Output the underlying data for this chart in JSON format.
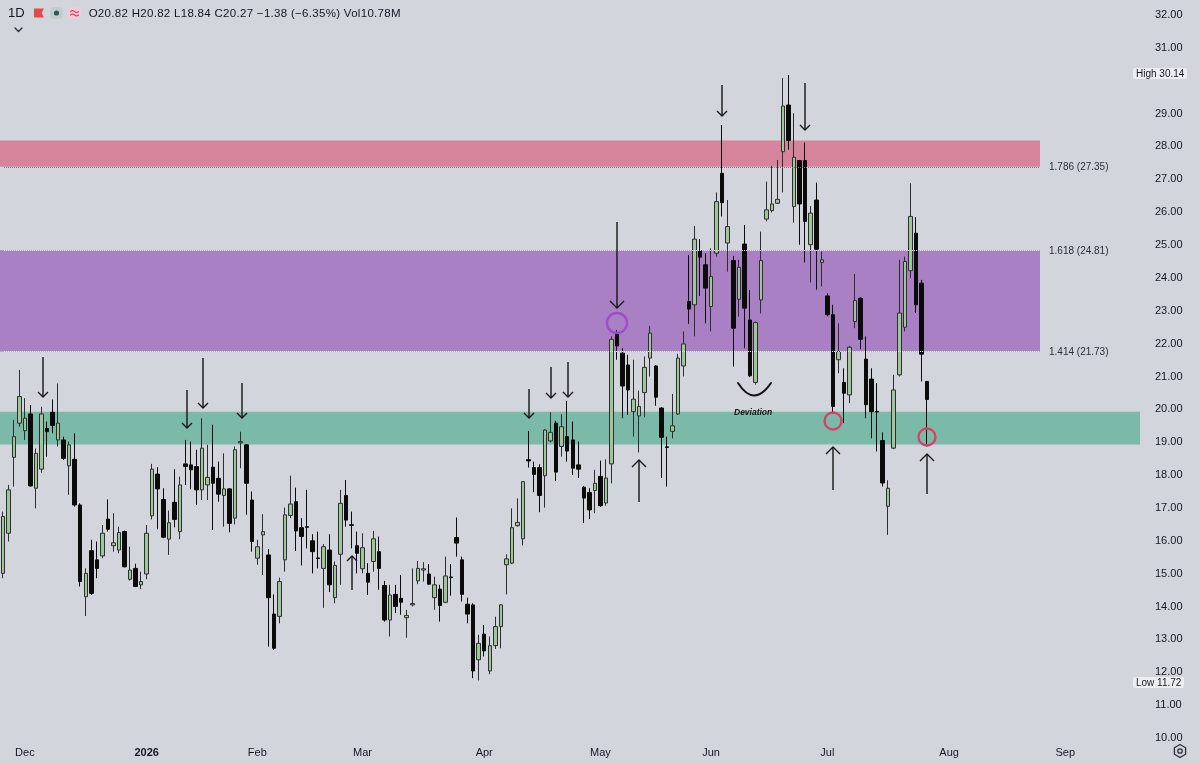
{
  "chart_data": {
    "type": "candlestick",
    "title": "1D",
    "subtitle": "O20.82 H20.82 L18.84 C20.27 −1.38 (−6.35%) Vol10.78M",
    "categories": [
      null,
      null,
      null,
      null,
      "Dec",
      null,
      null,
      null,
      null,
      null,
      null,
      null,
      null,
      null,
      null,
      null,
      null,
      null,
      null,
      null,
      null,
      null,
      null,
      null,
      null,
      null,
      "2026",
      null,
      null,
      null,
      null,
      null,
      null,
      null,
      null,
      null,
      null,
      null,
      null,
      null,
      null,
      null,
      null,
      null,
      null,
      null,
      "Feb",
      null,
      null,
      null,
      null,
      null,
      null,
      null,
      null,
      null,
      null,
      null,
      null,
      null,
      null,
      null,
      null,
      null,
      null,
      "Mar",
      null,
      null,
      null,
      null,
      null,
      null,
      null,
      null,
      null,
      null,
      null,
      null,
      null,
      null,
      null,
      null,
      null,
      null,
      null,
      null,
      null,
      "Apr",
      null,
      null,
      null,
      null,
      null,
      null,
      null,
      null,
      null,
      null,
      null,
      null,
      null,
      null,
      null,
      null,
      null,
      null,
      null,
      null,
      "May",
      null,
      null,
      null,
      null,
      null,
      null,
      null,
      null,
      null,
      null,
      null,
      null,
      null,
      null,
      null,
      null,
      null,
      null,
      null,
      "Jun",
      null,
      null,
      null,
      null,
      null,
      null,
      null,
      null,
      null,
      null,
      null,
      null,
      null,
      null,
      null,
      null,
      null,
      null,
      null,
      null,
      "Jul",
      null,
      null,
      null,
      null,
      null,
      null,
      null,
      null,
      null,
      null,
      null,
      null,
      null,
      null,
      null,
      null,
      null,
      null,
      null,
      null,
      null,
      "Aug",
      null,
      null,
      null,
      null,
      null,
      null,
      null,
      null,
      null,
      null,
      null,
      null,
      null,
      null,
      null,
      null,
      null,
      null,
      null,
      null,
      "Sep",
      null,
      null,
      null,
      null,
      null,
      null,
      null,
      null,
      null,
      null,
      null,
      null,
      null
    ],
    "ohlc": [
      [
        14.98,
        16.86,
        14.83,
        16.71
      ],
      [
        16.2,
        17.67,
        15.95,
        17.52
      ],
      [
        18.51,
        19.65,
        17.62,
        19.14
      ],
      [
        19.55,
        21.17,
        19.44,
        20.36
      ],
      [
        19.32,
        20.31,
        19.04,
        19.7
      ],
      [
        19.83,
        20.1,
        17.62,
        17.64
      ],
      [
        17.57,
        18.78,
        16.96,
        18.63
      ],
      [
        18.15,
        20.05,
        18.04,
        19.83
      ],
      [
        19.39,
        19.6,
        18.53,
        19.29
      ],
      [
        19.88,
        20.27,
        19.24,
        19.48
      ],
      [
        19.04,
        20.76,
        18.84,
        19.55
      ],
      [
        19.04,
        19.14,
        18.43,
        18.48
      ],
      [
        18.25,
        18.99,
        17.37,
        18.89
      ],
      [
        18.45,
        19.24,
        17.01,
        17.06
      ],
      [
        17.06,
        17.11,
        14.58,
        14.73
      ],
      [
        14.27,
        15.13,
        13.68,
        14.98
      ],
      [
        15.67,
        16.0,
        14.32,
        14.37
      ],
      [
        15.39,
        15.95,
        14.83,
        15.13
      ],
      [
        15.51,
        16.45,
        15.44,
        16.2
      ],
      [
        16.63,
        17.23,
        16.25,
        16.32
      ],
      [
        15.82,
        16.81,
        15.64,
        15.91
      ],
      [
        15.69,
        16.4,
        15.59,
        16.22
      ],
      [
        16.25,
        16.28,
        15.16,
        15.18
      ],
      [
        14.8,
        15.79,
        14.76,
        15.08
      ],
      [
        15.13,
        15.27,
        14.56,
        14.58
      ],
      [
        14.63,
        15.03,
        14.5,
        14.73
      ],
      [
        14.96,
        16.45,
        14.8,
        16.2
      ],
      [
        16.73,
        18.31,
        16.62,
        18.15
      ],
      [
        18.0,
        18.21,
        16.32,
        17.55
      ],
      [
        17.23,
        17.57,
        16.05,
        16.08
      ],
      [
        16.02,
        16.89,
        15.54,
        16.52
      ],
      [
        17.14,
        18.15,
        16.38,
        16.62
      ],
      [
        16.25,
        17.92,
        16.02,
        17.67
      ],
      [
        18.31,
        19.04,
        17.67,
        18.23
      ],
      [
        18.28,
        18.99,
        17.54,
        18.13
      ],
      [
        18.23,
        18.74,
        17.06,
        17.52
      ],
      [
        17.52,
        19.7,
        17.21,
        18.79
      ],
      [
        17.67,
        18.89,
        17.21,
        17.9
      ],
      [
        18.21,
        19.5,
        16.3,
        17.72
      ],
      [
        17.87,
        18.38,
        17.16,
        17.39
      ],
      [
        17.35,
        18.63,
        16.4,
        17.55
      ],
      [
        17.55,
        17.57,
        16.23,
        16.5
      ],
      [
        16.66,
        18.84,
        16.47,
        18.74
      ],
      [
        18.95,
        19.29,
        18.18,
        18.99
      ],
      [
        18.89,
        18.91,
        16.76,
        17.72
      ],
      [
        17.21,
        17.47,
        15.64,
        15.95
      ],
      [
        15.44,
        16.0,
        15.24,
        15.79
      ],
      [
        16.15,
        16.78,
        14.93,
        16.25
      ],
      [
        15.54,
        15.72,
        12.75,
        14.24
      ],
      [
        13.74,
        14.34,
        12.65,
        12.7
      ],
      [
        13.67,
        14.85,
        13.46,
        14.73
      ],
      [
        15.39,
        16.98,
        15.03,
        16.76
      ],
      [
        16.74,
        17.95,
        16.66,
        17.09
      ],
      [
        17.16,
        17.59,
        15.66,
        16.27
      ],
      [
        16.37,
        16.66,
        15.22,
        16.1
      ],
      [
        16.4,
        17.52,
        15.74,
        16.38
      ],
      [
        15.97,
        16.17,
        14.98,
        15.64
      ],
      [
        15.45,
        16.25,
        15.13,
        15.43
      ],
      [
        15.13,
        15.87,
        13.93,
        15.79
      ],
      [
        15.69,
        16.17,
        14.41,
        14.63
      ],
      [
        14.24,
        15.34,
        14.07,
        15.22
      ],
      [
        15.56,
        17.52,
        14.63,
        17.11
      ],
      [
        17.35,
        17.82,
        16.4,
        16.6
      ],
      [
        16.46,
        16.86,
        15.74,
        16.44
      ],
      [
        15.82,
        16.25,
        14.98,
        15.59
      ],
      [
        15.12,
        16.2,
        14.98,
        15.76
      ],
      [
        14.98,
        15.29,
        14.32,
        14.71
      ],
      [
        15.34,
        16.27,
        15.03,
        16.03
      ],
      [
        15.64,
        16.1,
        14.48,
        15.13
      ],
      [
        14.61,
        14.75,
        13.51,
        13.56
      ],
      [
        13.56,
        14.63,
        13.06,
        14.32
      ],
      [
        14.34,
        14.63,
        13.77,
        13.97
      ],
      [
        14.22,
        14.93,
        13.72,
        14.1
      ],
      [
        13.63,
        13.87,
        13.02,
        13.7
      ],
      [
        14.02,
        15.13,
        13.97,
        14.06
      ],
      [
        14.75,
        15.36,
        14.65,
        15.13
      ],
      [
        15.08,
        15.32,
        14.73,
        15.12
      ],
      [
        14.96,
        15.26,
        14.63,
        14.65
      ],
      [
        14.24,
        14.88,
        13.87,
        14.63
      ],
      [
        14.5,
        14.63,
        13.51,
        14.0
      ],
      [
        14.1,
        15.49,
        14.07,
        14.9
      ],
      [
        14.87,
        15.26,
        14.3,
        14.85
      ],
      [
        16.07,
        16.68,
        15.49,
        15.9
      ],
      [
        15.39,
        15.49,
        14.12,
        14.34
      ],
      [
        14.04,
        14.24,
        13.46,
        13.74
      ],
      [
        14.02,
        14.07,
        11.79,
        12.01
      ],
      [
        12.35,
        13.11,
        11.72,
        12.85
      ],
      [
        13.13,
        13.41,
        12.45,
        12.62
      ],
      [
        12.01,
        13.06,
        11.91,
        12.78
      ],
      [
        12.78,
        13.66,
        12.68,
        13.36
      ],
      [
        13.36,
        14.04,
        12.7,
        14.02
      ],
      [
        15.24,
        15.56,
        14.34,
        15.42
      ],
      [
        15.29,
        16.96,
        15.26,
        16.37
      ],
      [
        16.43,
        17.26,
        16.4,
        16.53
      ],
      [
        16.03,
        17.79,
        15.83,
        17.77
      ],
      [
        18.44,
        19.31,
        18.2,
        18.4
      ],
      [
        18.2,
        18.38,
        17.45,
        17.99
      ],
      [
        18.2,
        18.3,
        16.84,
        17.35
      ],
      [
        17.95,
        19.37,
        16.98,
        19.34
      ],
      [
        19.01,
        19.88,
        18.97,
        19.27
      ],
      [
        19.55,
        19.62,
        17.79,
        18.06
      ],
      [
        18.84,
        19.82,
        18.53,
        19.44
      ],
      [
        19.14,
        20.23,
        18.38,
        18.7
      ],
      [
        19.04,
        19.6,
        17.97,
        18.18
      ],
      [
        18.28,
        18.99,
        17.88,
        18.15
      ],
      [
        17.6,
        17.64,
        16.51,
        17.27
      ],
      [
        17.44,
        17.57,
        16.63,
        16.91
      ],
      [
        17.5,
        18.13,
        16.81,
        17.72
      ],
      [
        17.93,
        18.41,
        17.0,
        17.04
      ],
      [
        17.12,
        18.45,
        17.04,
        17.88
      ],
      [
        18.31,
        22.19,
        17.72,
        22.1
      ],
      [
        22.31,
        22.39,
        21.48,
        21.9
      ],
      [
        21.68,
        21.83,
        19.7,
        20.68
      ],
      [
        21.32,
        21.63,
        19.8,
        20.56
      ],
      [
        19.9,
        21.48,
        19.14,
        20.28
      ],
      [
        19.77,
        20.54,
        18.66,
        20.06
      ],
      [
        20.48,
        21.58,
        19.73,
        21.25
      ],
      [
        21.53,
        22.51,
        20.97,
        22.29
      ],
      [
        21.29,
        21.32,
        20.08,
        20.34
      ],
      [
        20.01,
        20.04,
        17.88,
        19.12
      ],
      [
        18.83,
        19.14,
        17.62,
        18.81
      ],
      [
        19.3,
        20.44,
        19.09,
        19.47
      ],
      [
        19.83,
        21.66,
        19.8,
        21.53
      ],
      [
        21.29,
        22.34,
        20.97,
        21.96
      ],
      [
        23.25,
        24.67,
        22.57,
        23.02
      ],
      [
        23.15,
        25.55,
        22.19,
        25.15
      ],
      [
        24.8,
        25.15,
        23.42,
        24.6
      ],
      [
        24.37,
        24.72,
        22.59,
        23.66
      ],
      [
        23.1,
        24.87,
        22.34,
        24.01
      ],
      [
        24.72,
        26.57,
        24.62,
        26.29
      ],
      [
        27.15,
        28.62,
        25.84,
        26.26
      ],
      [
        25.03,
        26.34,
        24.16,
        25.53
      ],
      [
        24.5,
        24.64,
        21.27,
        22.44
      ],
      [
        23.32,
        24.52,
        22.79,
        24.29
      ],
      [
        25.0,
        25.58,
        21.83,
        23.05
      ],
      [
        22.69,
        23.6,
        20.95,
        20.99
      ],
      [
        20.79,
        22.64,
        20.72,
        22.61
      ],
      [
        23.3,
        25.38,
        22.89,
        24.5
      ],
      [
        25.76,
        26.9,
        25.69,
        26.04
      ],
      [
        26.02,
        27.38,
        25.96,
        26.22
      ],
      [
        26.24,
        27.56,
        26.22,
        26.36
      ],
      [
        27.81,
        30.05,
        26.57,
        29.2
      ],
      [
        29.23,
        30.14,
        27.87,
        28.15
      ],
      [
        26.14,
        28.98,
        25.65,
        27.64
      ],
      [
        27.54,
        27.56,
        24.98,
        26.22
      ],
      [
        27.54,
        28.09,
        24.44,
        25.69
      ],
      [
        24.98,
        26.16,
        23.83,
        25.94
      ],
      [
        26.34,
        26.87,
        23.61,
        24.84
      ],
      [
        24.44,
        24.77,
        23.71,
        24.52
      ],
      [
        23.42,
        23.5,
        22.8,
        22.85
      ],
      [
        22.85,
        23.15,
        19.85,
        20.06
      ],
      [
        21.48,
        22.59,
        21.07,
        21.73
      ],
      [
        20.79,
        21.22,
        19.55,
        20.46
      ],
      [
        20.41,
        21.9,
        20.16,
        21.86
      ],
      [
        22.64,
        24.09,
        22.44,
        23.28
      ],
      [
        23.35,
        23.38,
        21.8,
        22.1
      ],
      [
        21.5,
        22.19,
        19.7,
        20.11
      ],
      [
        20.89,
        21.22,
        19.09,
        19.9
      ],
      [
        19.91,
        20.77,
        18.69,
        19.89
      ],
      [
        19.02,
        19.27,
        17.62,
        17.73
      ],
      [
        17.02,
        17.81,
        16.15,
        17.57
      ],
      [
        18.79,
        21.02,
        18.76,
        20.56
      ],
      [
        21.02,
        24.52,
        20.97,
        22.9
      ],
      [
        22.47,
        24.62,
        22.34,
        24.47
      ],
      [
        24.19,
        26.85,
        23.96,
        25.84
      ],
      [
        25.33,
        25.82,
        22.9,
        23.15
      ],
      [
        23.81,
        23.91,
        20.82,
        21.65
      ],
      [
        20.82,
        20.82,
        18.84,
        20.27
      ],
      null,
      null,
      null,
      null,
      null,
      null,
      null,
      null,
      null,
      null,
      null,
      null,
      null,
      null,
      null,
      null,
      null,
      null,
      null,
      null,
      null,
      null,
      null,
      null,
      null,
      null,
      null,
      null,
      null,
      null,
      null,
      null,
      null,
      null,
      null,
      null,
      null,
      null
    ],
    "ylim": [
      10,
      32
    ],
    "yticks": [
      {
        "value": 10,
        "label": "10.00"
      },
      {
        "value": 11,
        "label": "11.00"
      },
      {
        "value": 12,
        "label": "12.00"
      },
      {
        "value": 13,
        "label": "13.00"
      },
      {
        "value": 14,
        "label": "14.00"
      },
      {
        "value": 15,
        "label": "15.00"
      },
      {
        "value": 16,
        "label": "16.00"
      },
      {
        "value": 17,
        "label": "17.00"
      },
      {
        "value": 18,
        "label": "18.00"
      },
      {
        "value": 19,
        "label": "19.00"
      },
      {
        "value": 20,
        "label": "20.00"
      },
      {
        "value": 21,
        "label": "21.00"
      },
      {
        "value": 22,
        "label": "22.00"
      },
      {
        "value": 23,
        "label": "23.00"
      },
      {
        "value": 24,
        "label": "24.00"
      },
      {
        "value": 25,
        "label": "25.00"
      },
      {
        "value": 26,
        "label": "26.00"
      },
      {
        "value": 27,
        "label": "27.00"
      },
      {
        "value": 28,
        "label": "28.00"
      },
      {
        "value": 29,
        "label": "29.00"
      },
      {
        "value": 31,
        "label": "31.00"
      },
      {
        "value": 32,
        "label": "32.00"
      }
    ],
    "bands": [
      {
        "axis": "y",
        "from": 27.35,
        "to": 28.15,
        "color": "#d6839c"
      },
      {
        "axis": "y",
        "from": 21.73,
        "to": 24.81,
        "color": "#a980c4"
      },
      {
        "axis": "y",
        "from": 18.9,
        "to": 19.9,
        "color": "#7bb9a8"
      }
    ],
    "ref_lines": [
      {
        "axis": "y",
        "value": 27.35,
        "label": "1.786 (27.35)",
        "color": "#7a7a7a",
        "line_style": "dotted"
      },
      {
        "axis": "y",
        "value": 24.81,
        "label": "1.618 (24.81)",
        "color": "#e8e2f0",
        "line_style": "dotted"
      },
      {
        "axis": "y",
        "value": 21.73,
        "label": "1.414 (21.73)",
        "color": "#e8e2f0",
        "line_style": "dotted"
      }
    ],
    "annotations": [
      "Deviation",
      "High 30.14",
      "Low 11.72"
    ]
  }
}
